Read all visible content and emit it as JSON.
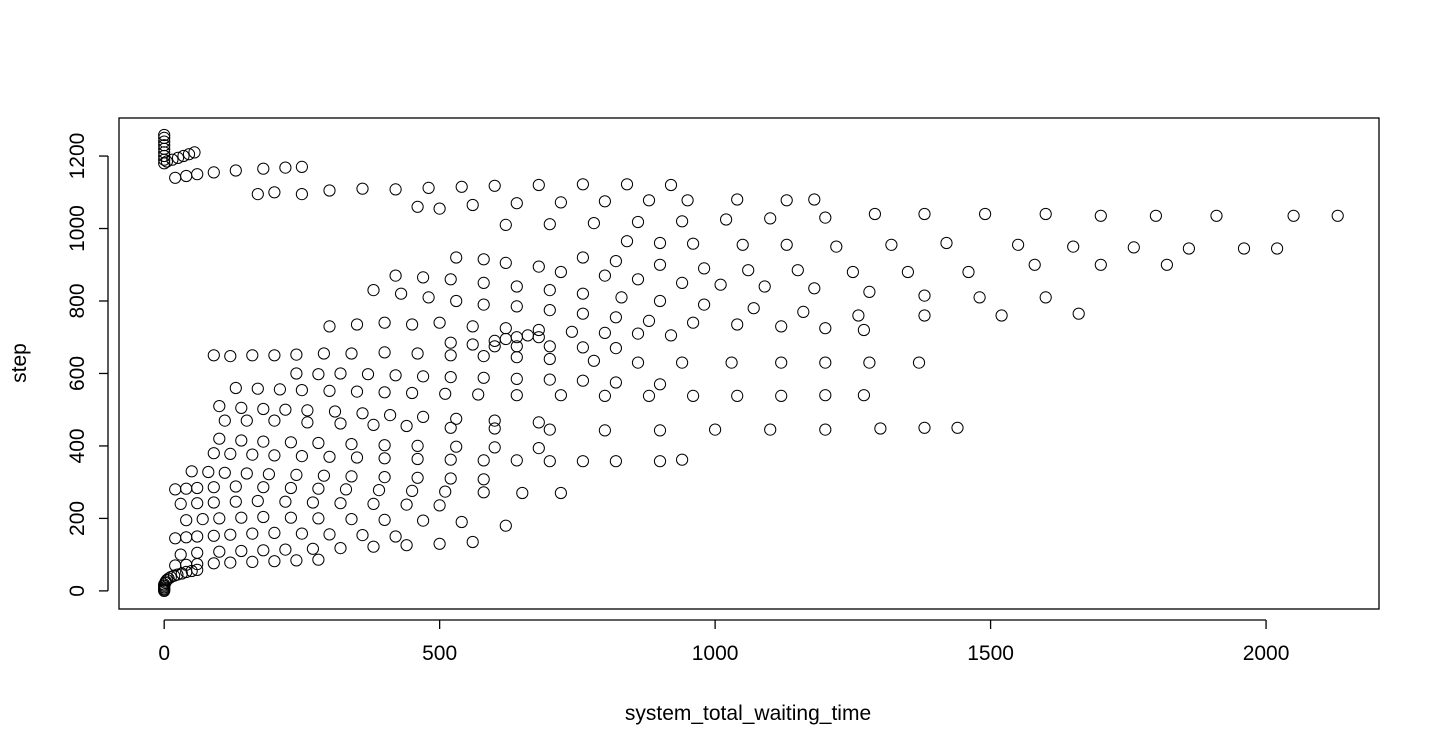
{
  "chart_data": {
    "type": "scatter",
    "title": "",
    "xlabel": "system_total_waiting_time",
    "ylabel": "step",
    "xlim": [
      -82,
      2205
    ],
    "ylim": [
      -50,
      1305
    ],
    "x_ticks": [
      0,
      500,
      1000,
      1500,
      2000
    ],
    "y_ticks": [
      0,
      200,
      400,
      600,
      800,
      1000,
      1200
    ],
    "x_tick_labels": [
      "0",
      "500",
      "1000",
      "1500",
      "2000"
    ],
    "y_tick_labels": [
      "0",
      "200",
      "400",
      "600",
      "800",
      "1000",
      "1200"
    ],
    "marker": "open-circle",
    "grid": false,
    "legend": "none",
    "colors": {
      "points": "#000000",
      "background": "#ffffff"
    },
    "points": [
      [
        0,
        0
      ],
      [
        0,
        3
      ],
      [
        0,
        6
      ],
      [
        0,
        10
      ],
      [
        0,
        14
      ],
      [
        0,
        18
      ],
      [
        2,
        22
      ],
      [
        3,
        26
      ],
      [
        5,
        30
      ],
      [
        8,
        34
      ],
      [
        12,
        38
      ],
      [
        18,
        42
      ],
      [
        24,
        45
      ],
      [
        32,
        48
      ],
      [
        40,
        52
      ],
      [
        50,
        55
      ],
      [
        60,
        58
      ],
      [
        0,
        1180
      ],
      [
        0,
        1190
      ],
      [
        0,
        1200
      ],
      [
        0,
        1210
      ],
      [
        0,
        1220
      ],
      [
        0,
        1230
      ],
      [
        0,
        1240
      ],
      [
        0,
        1250
      ],
      [
        0,
        1258
      ],
      [
        5,
        1185
      ],
      [
        15,
        1190
      ],
      [
        25,
        1195
      ],
      [
        35,
        1200
      ],
      [
        45,
        1205
      ],
      [
        55,
        1210
      ],
      [
        20,
        1140
      ],
      [
        40,
        1145
      ],
      [
        60,
        1150
      ],
      [
        90,
        1155
      ],
      [
        130,
        1160
      ],
      [
        180,
        1165
      ],
      [
        220,
        1168
      ],
      [
        250,
        1170
      ],
      [
        170,
        1095
      ],
      [
        200,
        1100
      ],
      [
        250,
        1095
      ],
      [
        300,
        1105
      ],
      [
        360,
        1110
      ],
      [
        420,
        1108
      ],
      [
        480,
        1112
      ],
      [
        540,
        1115
      ],
      [
        600,
        1118
      ],
      [
        680,
        1120
      ],
      [
        760,
        1122
      ],
      [
        840,
        1122
      ],
      [
        920,
        1120
      ],
      [
        460,
        1060
      ],
      [
        500,
        1055
      ],
      [
        560,
        1065
      ],
      [
        640,
        1070
      ],
      [
        720,
        1072
      ],
      [
        800,
        1075
      ],
      [
        880,
        1078
      ],
      [
        950,
        1078
      ],
      [
        1040,
        1080
      ],
      [
        1130,
        1078
      ],
      [
        1180,
        1080
      ],
      [
        620,
        1010
      ],
      [
        700,
        1012
      ],
      [
        780,
        1015
      ],
      [
        860,
        1018
      ],
      [
        940,
        1020
      ],
      [
        1020,
        1025
      ],
      [
        1100,
        1028
      ],
      [
        1200,
        1030
      ],
      [
        1290,
        1040
      ],
      [
        1380,
        1040
      ],
      [
        1490,
        1040
      ],
      [
        1600,
        1040
      ],
      [
        1700,
        1035
      ],
      [
        1800,
        1035
      ],
      [
        1910,
        1035
      ],
      [
        2050,
        1035
      ],
      [
        2130,
        1035
      ],
      [
        840,
        965
      ],
      [
        900,
        960
      ],
      [
        960,
        958
      ],
      [
        1050,
        955
      ],
      [
        1130,
        955
      ],
      [
        1220,
        950
      ],
      [
        1320,
        955
      ],
      [
        1420,
        960
      ],
      [
        1550,
        955
      ],
      [
        1650,
        950
      ],
      [
        1760,
        948
      ],
      [
        1860,
        945
      ],
      [
        1960,
        945
      ],
      [
        2020,
        945
      ],
      [
        760,
        920
      ],
      [
        820,
        910
      ],
      [
        900,
        900
      ],
      [
        980,
        890
      ],
      [
        1060,
        885
      ],
      [
        1150,
        885
      ],
      [
        1250,
        880
      ],
      [
        1350,
        880
      ],
      [
        1460,
        880
      ],
      [
        1580,
        900
      ],
      [
        1700,
        900
      ],
      [
        1820,
        900
      ],
      [
        530,
        920
      ],
      [
        580,
        915
      ],
      [
        620,
        905
      ],
      [
        680,
        895
      ],
      [
        720,
        880
      ],
      [
        800,
        870
      ],
      [
        860,
        860
      ],
      [
        940,
        850
      ],
      [
        1010,
        845
      ],
      [
        1090,
        840
      ],
      [
        1180,
        835
      ],
      [
        1280,
        825
      ],
      [
        1380,
        815
      ],
      [
        1480,
        810
      ],
      [
        1600,
        810
      ],
      [
        420,
        870
      ],
      [
        470,
        865
      ],
      [
        520,
        860
      ],
      [
        580,
        850
      ],
      [
        640,
        840
      ],
      [
        700,
        830
      ],
      [
        760,
        820
      ],
      [
        830,
        810
      ],
      [
        900,
        800
      ],
      [
        980,
        790
      ],
      [
        1070,
        780
      ],
      [
        1160,
        770
      ],
      [
        1260,
        760
      ],
      [
        1380,
        760
      ],
      [
        1520,
        760
      ],
      [
        1660,
        765
      ],
      [
        380,
        830
      ],
      [
        430,
        820
      ],
      [
        480,
        810
      ],
      [
        530,
        800
      ],
      [
        580,
        790
      ],
      [
        640,
        785
      ],
      [
        700,
        775
      ],
      [
        760,
        765
      ],
      [
        820,
        755
      ],
      [
        880,
        745
      ],
      [
        960,
        740
      ],
      [
        1040,
        735
      ],
      [
        1120,
        730
      ],
      [
        1200,
        725
      ],
      [
        1270,
        720
      ],
      [
        300,
        730
      ],
      [
        350,
        735
      ],
      [
        400,
        740
      ],
      [
        450,
        735
      ],
      [
        500,
        740
      ],
      [
        560,
        730
      ],
      [
        620,
        725
      ],
      [
        680,
        720
      ],
      [
        740,
        715
      ],
      [
        800,
        712
      ],
      [
        860,
        710
      ],
      [
        920,
        705
      ],
      [
        600,
        690
      ],
      [
        620,
        695
      ],
      [
        640,
        700
      ],
      [
        660,
        705
      ],
      [
        680,
        700
      ],
      [
        520,
        685
      ],
      [
        560,
        680
      ],
      [
        600,
        675
      ],
      [
        640,
        675
      ],
      [
        700,
        675
      ],
      [
        760,
        672
      ],
      [
        820,
        670
      ],
      [
        90,
        650
      ],
      [
        120,
        648
      ],
      [
        160,
        650
      ],
      [
        200,
        650
      ],
      [
        240,
        652
      ],
      [
        290,
        655
      ],
      [
        340,
        655
      ],
      [
        400,
        658
      ],
      [
        460,
        655
      ],
      [
        520,
        650
      ],
      [
        580,
        648
      ],
      [
        640,
        645
      ],
      [
        700,
        640
      ],
      [
        780,
        635
      ],
      [
        860,
        630
      ],
      [
        940,
        630
      ],
      [
        1030,
        630
      ],
      [
        1120,
        630
      ],
      [
        1200,
        630
      ],
      [
        1280,
        630
      ],
      [
        1370,
        630
      ],
      [
        240,
        600
      ],
      [
        280,
        598
      ],
      [
        320,
        600
      ],
      [
        370,
        598
      ],
      [
        420,
        595
      ],
      [
        470,
        592
      ],
      [
        520,
        590
      ],
      [
        580,
        588
      ],
      [
        640,
        585
      ],
      [
        700,
        583
      ],
      [
        760,
        580
      ],
      [
        820,
        575
      ],
      [
        900,
        570
      ],
      [
        130,
        560
      ],
      [
        170,
        558
      ],
      [
        210,
        556
      ],
      [
        250,
        554
      ],
      [
        300,
        552
      ],
      [
        350,
        550
      ],
      [
        400,
        548
      ],
      [
        450,
        546
      ],
      [
        510,
        544
      ],
      [
        570,
        542
      ],
      [
        640,
        540
      ],
      [
        720,
        540
      ],
      [
        800,
        538
      ],
      [
        880,
        538
      ],
      [
        960,
        538
      ],
      [
        1040,
        538
      ],
      [
        1120,
        538
      ],
      [
        1200,
        540
      ],
      [
        1270,
        540
      ],
      [
        100,
        510
      ],
      [
        140,
        505
      ],
      [
        180,
        502
      ],
      [
        220,
        500
      ],
      [
        260,
        498
      ],
      [
        310,
        495
      ],
      [
        360,
        490
      ],
      [
        410,
        485
      ],
      [
        470,
        480
      ],
      [
        530,
        475
      ],
      [
        600,
        470
      ],
      [
        680,
        465
      ],
      [
        110,
        470
      ],
      [
        150,
        470
      ],
      [
        200,
        470
      ],
      [
        260,
        465
      ],
      [
        320,
        462
      ],
      [
        380,
        458
      ],
      [
        440,
        455
      ],
      [
        520,
        450
      ],
      [
        600,
        448
      ],
      [
        700,
        445
      ],
      [
        800,
        443
      ],
      [
        900,
        443
      ],
      [
        1000,
        445
      ],
      [
        1100,
        445
      ],
      [
        1200,
        445
      ],
      [
        1300,
        448
      ],
      [
        1380,
        450
      ],
      [
        1440,
        450
      ],
      [
        90,
        380
      ],
      [
        120,
        378
      ],
      [
        160,
        376
      ],
      [
        200,
        374
      ],
      [
        250,
        372
      ],
      [
        300,
        370
      ],
      [
        350,
        368
      ],
      [
        400,
        366
      ],
      [
        460,
        364
      ],
      [
        520,
        362
      ],
      [
        580,
        360
      ],
      [
        640,
        360
      ],
      [
        700,
        358
      ],
      [
        760,
        358
      ],
      [
        820,
        358
      ],
      [
        900,
        358
      ],
      [
        940,
        362
      ],
      [
        100,
        420
      ],
      [
        140,
        415
      ],
      [
        180,
        412
      ],
      [
        230,
        410
      ],
      [
        280,
        408
      ],
      [
        340,
        405
      ],
      [
        400,
        402
      ],
      [
        460,
        400
      ],
      [
        530,
        398
      ],
      [
        600,
        396
      ],
      [
        680,
        394
      ],
      [
        50,
        330
      ],
      [
        80,
        328
      ],
      [
        110,
        326
      ],
      [
        150,
        324
      ],
      [
        190,
        322
      ],
      [
        240,
        320
      ],
      [
        290,
        318
      ],
      [
        340,
        316
      ],
      [
        400,
        314
      ],
      [
        460,
        312
      ],
      [
        520,
        310
      ],
      [
        580,
        308
      ],
      [
        20,
        280
      ],
      [
        40,
        282
      ],
      [
        60,
        284
      ],
      [
        90,
        286
      ],
      [
        130,
        288
      ],
      [
        180,
        286
      ],
      [
        230,
        284
      ],
      [
        280,
        282
      ],
      [
        330,
        280
      ],
      [
        390,
        278
      ],
      [
        450,
        276
      ],
      [
        510,
        274
      ],
      [
        580,
        272
      ],
      [
        650,
        270
      ],
      [
        720,
        270
      ],
      [
        30,
        240
      ],
      [
        60,
        242
      ],
      [
        90,
        244
      ],
      [
        130,
        246
      ],
      [
        170,
        248
      ],
      [
        220,
        246
      ],
      [
        270,
        244
      ],
      [
        320,
        242
      ],
      [
        380,
        240
      ],
      [
        440,
        238
      ],
      [
        500,
        236
      ],
      [
        40,
        195
      ],
      [
        70,
        198
      ],
      [
        100,
        200
      ],
      [
        140,
        202
      ],
      [
        180,
        204
      ],
      [
        230,
        202
      ],
      [
        280,
        200
      ],
      [
        340,
        198
      ],
      [
        400,
        196
      ],
      [
        470,
        194
      ],
      [
        540,
        190
      ],
      [
        620,
        180
      ],
      [
        20,
        145
      ],
      [
        40,
        148
      ],
      [
        60,
        150
      ],
      [
        90,
        152
      ],
      [
        120,
        155
      ],
      [
        160,
        158
      ],
      [
        200,
        160
      ],
      [
        250,
        158
      ],
      [
        300,
        156
      ],
      [
        360,
        154
      ],
      [
        420,
        150
      ],
      [
        30,
        100
      ],
      [
        60,
        105
      ],
      [
        100,
        108
      ],
      [
        140,
        110
      ],
      [
        180,
        112
      ],
      [
        220,
        114
      ],
      [
        270,
        116
      ],
      [
        320,
        118
      ],
      [
        380,
        122
      ],
      [
        440,
        126
      ],
      [
        500,
        130
      ],
      [
        560,
        135
      ],
      [
        20,
        70
      ],
      [
        40,
        72
      ],
      [
        60,
        74
      ],
      [
        90,
        76
      ],
      [
        120,
        78
      ],
      [
        160,
        80
      ],
      [
        200,
        82
      ],
      [
        240,
        84
      ],
      [
        280,
        86
      ]
    ]
  }
}
